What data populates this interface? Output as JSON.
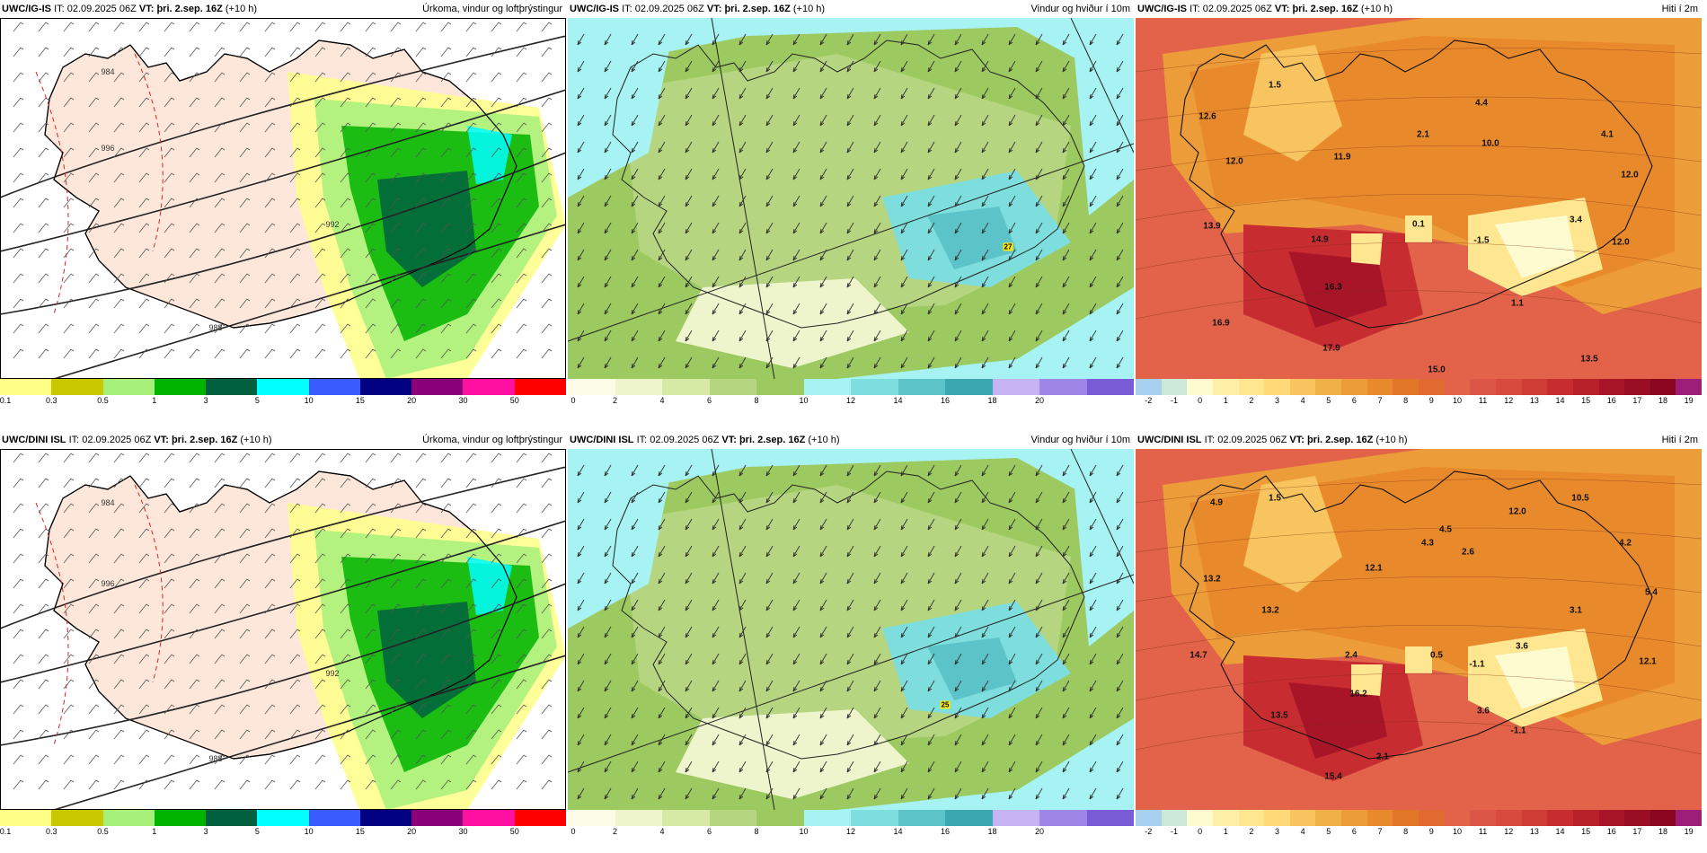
{
  "panels": [
    {
      "model": "UWC/IG-IS",
      "it_label": "IT:",
      "it_value": "02.09.2025 06Z",
      "vt_label": "VT:",
      "vt_value": "þri. 2.sep. 16Z",
      "lead": "(+10 h)",
      "title": "Úrkoma, vindur og loftþrýstingur",
      "scale_type": "precip",
      "scale_labels": [
        "0.1",
        "0.3",
        "0.5",
        "1",
        "3",
        "5",
        "10",
        "15",
        "20",
        "30",
        "50"
      ],
      "scale_colors": [
        "#ffff88",
        "#c8c800",
        "#a6f07a",
        "#00b400",
        "#006040",
        "#00ffff",
        "#3a5cff",
        "#000080",
        "#8a0078",
        "#ff10a0",
        "#ff0000"
      ],
      "map_labels": [
        "996",
        "992",
        "988",
        "984"
      ]
    },
    {
      "model": "UWC/IG-IS",
      "it_label": "IT:",
      "it_value": "02.09.2025 06Z",
      "vt_label": "VT:",
      "vt_value": "þri. 2.sep. 16Z",
      "lead": "(+10 h)",
      "title": "Vindur og hviður í 10m",
      "scale_type": "wind",
      "scale_labels": [
        "0",
        "2",
        "4",
        "6",
        "8",
        "10",
        "12",
        "14",
        "16",
        "18",
        "20"
      ],
      "scale_colors": [
        "#fbfbe6",
        "#eef5cc",
        "#d6eaa6",
        "#b5d580",
        "#9cc960",
        "#a7f3f3",
        "#7edede",
        "#5cc4c8",
        "#3aa8ae",
        "#c6b4f2",
        "#9d86e6",
        "#7a5cd6"
      ],
      "map_labels": [
        "27"
      ]
    },
    {
      "model": "UWC/IG-IS",
      "it_label": "IT:",
      "it_value": "02.09.2025 06Z",
      "vt_label": "VT:",
      "vt_value": "þri. 2.sep. 16Z",
      "lead": "(+10 h)",
      "title": "Hiti í 2m",
      "scale_type": "temp",
      "scale_labels": [
        "-2",
        "-1",
        "0",
        "1",
        "2",
        "3",
        "4",
        "5",
        "6",
        "7",
        "8",
        "9",
        "10",
        "11",
        "12",
        "13",
        "14",
        "15",
        "16",
        "17",
        "18",
        "19"
      ],
      "scale_colors": [
        "#a8d0f0",
        "#cce8d8",
        "#fffbd0",
        "#fff0a8",
        "#ffe690",
        "#ffd878",
        "#f8c460",
        "#f0b048",
        "#ec9c38",
        "#e88a2c",
        "#e27628",
        "#e06a30",
        "#e2624a",
        "#dc5648",
        "#d84a3e",
        "#d03c36",
        "#c62c30",
        "#b8202a",
        "#a81428",
        "#980c24",
        "#8a0620",
        "#9c1e78"
      ],
      "map_labels": [
        "1.5",
        "12.6",
        "4.4",
        "2.1",
        "10.0",
        "4.1",
        "12.0",
        "11.9",
        "12.0",
        "0.1",
        "3.4",
        "13.9",
        "14.9",
        "-1.5",
        "12.0",
        "16.3",
        "1.1",
        "16.9",
        "17.9",
        "13.5",
        "15.0"
      ]
    },
    {
      "model": "UWC/DINI ISL",
      "it_label": "IT:",
      "it_value": "02.09.2025 06Z",
      "vt_label": "VT:",
      "vt_value": "þri. 2.sep. 16Z",
      "lead": "(+10 h)",
      "title": "Úrkoma, vindur og loftþrýstingur",
      "scale_type": "precip",
      "scale_labels": [
        "0.1",
        "0.3",
        "0.5",
        "1",
        "3",
        "5",
        "10",
        "15",
        "20",
        "30",
        "50"
      ],
      "scale_colors": [
        "#ffff88",
        "#c8c800",
        "#a6f07a",
        "#00b400",
        "#006040",
        "#00ffff",
        "#3a5cff",
        "#000080",
        "#8a0078",
        "#ff10a0",
        "#ff0000"
      ],
      "map_labels": [
        "996",
        "992",
        "988",
        "984"
      ]
    },
    {
      "model": "UWC/DINI ISL",
      "it_label": "IT:",
      "it_value": "02.09.2025 06Z",
      "vt_label": "VT:",
      "vt_value": "þri. 2.sep. 16Z",
      "lead": "(+10 h)",
      "title": "Vindur og hviður í 10m",
      "scale_type": "wind",
      "scale_labels": [
        "0",
        "2",
        "4",
        "6",
        "8",
        "10",
        "12",
        "14",
        "16",
        "18",
        "20"
      ],
      "scale_colors": [
        "#fbfbe6",
        "#eef5cc",
        "#d6eaa6",
        "#b5d580",
        "#9cc960",
        "#a7f3f3",
        "#7edede",
        "#5cc4c8",
        "#3aa8ae",
        "#c6b4f2",
        "#9d86e6",
        "#7a5cd6"
      ],
      "map_labels": [
        "25"
      ]
    },
    {
      "model": "UWC/DINI ISL",
      "it_label": "IT:",
      "it_value": "02.09.2025 06Z",
      "vt_label": "VT:",
      "vt_value": "þri. 2.sep. 16Z",
      "lead": "(+10 h)",
      "title": "Hiti í 2m",
      "scale_type": "temp",
      "scale_labels": [
        "-2",
        "-1",
        "0",
        "1",
        "2",
        "3",
        "4",
        "5",
        "6",
        "7",
        "8",
        "9",
        "10",
        "11",
        "12",
        "13",
        "14",
        "15",
        "16",
        "17",
        "18",
        "19"
      ],
      "scale_colors": [
        "#a8d0f0",
        "#cce8d8",
        "#fffbd0",
        "#fff0a8",
        "#ffe690",
        "#ffd878",
        "#f8c460",
        "#f0b048",
        "#ec9c38",
        "#e88a2c",
        "#e27628",
        "#e06a30",
        "#e2624a",
        "#dc5648",
        "#d84a3e",
        "#d03c36",
        "#c62c30",
        "#b8202a",
        "#a81428",
        "#980c24",
        "#8a0620",
        "#9c1e78"
      ],
      "map_labels": [
        "4.9",
        "1.5",
        "10.5",
        "12.0",
        "4.5",
        "4.3",
        "2.6",
        "13.2",
        "12.1",
        "4.2",
        "5.4",
        "13.2",
        "3.1",
        "14.7",
        "2.4",
        "0.5",
        "3.6",
        "-1.1",
        "12.1",
        "13.5",
        "16.2",
        "3.6",
        "-1.1",
        "2.1",
        "15.4"
      ]
    }
  ]
}
